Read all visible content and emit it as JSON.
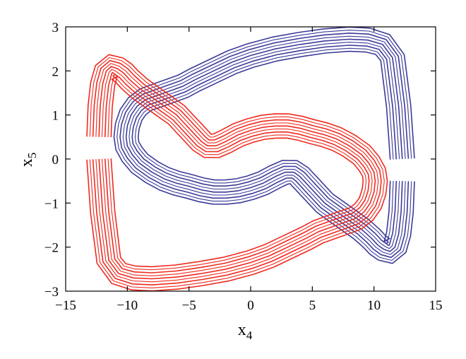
{
  "chart_data": {
    "type": "line",
    "xlabel": "x",
    "xlabel_sub": "4",
    "ylabel": "x",
    "ylabel_sub": "5",
    "xlim": [
      -15,
      15
    ],
    "ylim": [
      -3,
      3
    ],
    "xticks": [
      -15,
      -10,
      -5,
      0,
      5,
      10,
      15
    ],
    "yticks": [
      -3,
      -2,
      -1,
      0,
      1,
      2,
      3
    ],
    "xtick_labels": [
      "−15",
      "−10",
      "−5",
      "0",
      "5",
      "10",
      "15"
    ],
    "ytick_labels": [
      "−3",
      "−2",
      "−1",
      "0",
      "1",
      "2",
      "3"
    ],
    "grid": false,
    "series": [
      {
        "color": "#3b3b99",
        "band_width": 0.55,
        "x": [
          12.3,
          12.2,
          12.0,
          11.7,
          11.3,
          10.8,
          10.3,
          9.8,
          9.0,
          8.0,
          7.0,
          6.0,
          5.0,
          4.0,
          3.5,
          2.8,
          2.0,
          1.0,
          0.0,
          -1.0,
          -2.0,
          -3.0,
          -4.0,
          -5.0,
          -6.0,
          -7.0,
          -8.0,
          -9.0,
          -9.6,
          -10.0,
          -10.1,
          -10.0,
          -9.7,
          -9.2,
          -8.5,
          -7.5,
          -6.5,
          -5.5,
          -4.5,
          -3.0,
          -1.5,
          0.0,
          2.0,
          4.0,
          6.0,
          8.0,
          9.5,
          10.7,
          11.5,
          12.0,
          12.3
        ],
        "y": [
          -0.5,
          -1.2,
          -1.7,
          -2.0,
          -2.1,
          -2.05,
          -1.95,
          -1.8,
          -1.6,
          -1.4,
          -1.2,
          -1.0,
          -0.7,
          -0.4,
          -0.3,
          -0.3,
          -0.4,
          -0.55,
          -0.65,
          -0.72,
          -0.75,
          -0.75,
          -0.7,
          -0.62,
          -0.55,
          -0.45,
          -0.3,
          -0.1,
          0.1,
          0.3,
          0.5,
          0.75,
          1.0,
          1.2,
          1.35,
          1.45,
          1.55,
          1.65,
          1.8,
          2.0,
          2.2,
          2.35,
          2.5,
          2.6,
          2.68,
          2.72,
          2.7,
          2.6,
          2.3,
          1.2,
          0.0
        ]
      },
      {
        "color": "#ee2a1f",
        "band_width": 0.55,
        "x": [
          -12.3,
          -12.2,
          -12.0,
          -11.7,
          -11.3,
          -10.8,
          -10.3,
          -9.8,
          -9.0,
          -8.0,
          -7.0,
          -6.0,
          -5.0,
          -4.0,
          -3.5,
          -2.8,
          -2.0,
          -1.0,
          0.0,
          1.0,
          2.0,
          3.0,
          4.0,
          5.0,
          6.0,
          7.0,
          8.0,
          9.0,
          9.6,
          10.0,
          10.1,
          10.0,
          9.7,
          9.2,
          8.5,
          7.5,
          6.5,
          5.5,
          4.5,
          3.0,
          1.5,
          0.0,
          -2.0,
          -4.0,
          -6.0,
          -8.0,
          -9.5,
          -10.7,
          -11.5,
          -12.0,
          -12.3
        ],
        "y": [
          0.5,
          1.2,
          1.7,
          2.0,
          2.1,
          2.05,
          1.95,
          1.8,
          1.6,
          1.4,
          1.2,
          1.0,
          0.7,
          0.4,
          0.3,
          0.3,
          0.4,
          0.55,
          0.65,
          0.72,
          0.75,
          0.75,
          0.7,
          0.62,
          0.55,
          0.45,
          0.3,
          0.1,
          -0.1,
          -0.3,
          -0.5,
          -0.75,
          -1.0,
          -1.2,
          -1.35,
          -1.45,
          -1.55,
          -1.65,
          -1.8,
          -2.0,
          -2.2,
          -2.35,
          -2.5,
          -2.6,
          -2.68,
          -2.72,
          -2.7,
          -2.6,
          -2.3,
          -1.2,
          0.0
        ]
      }
    ]
  }
}
